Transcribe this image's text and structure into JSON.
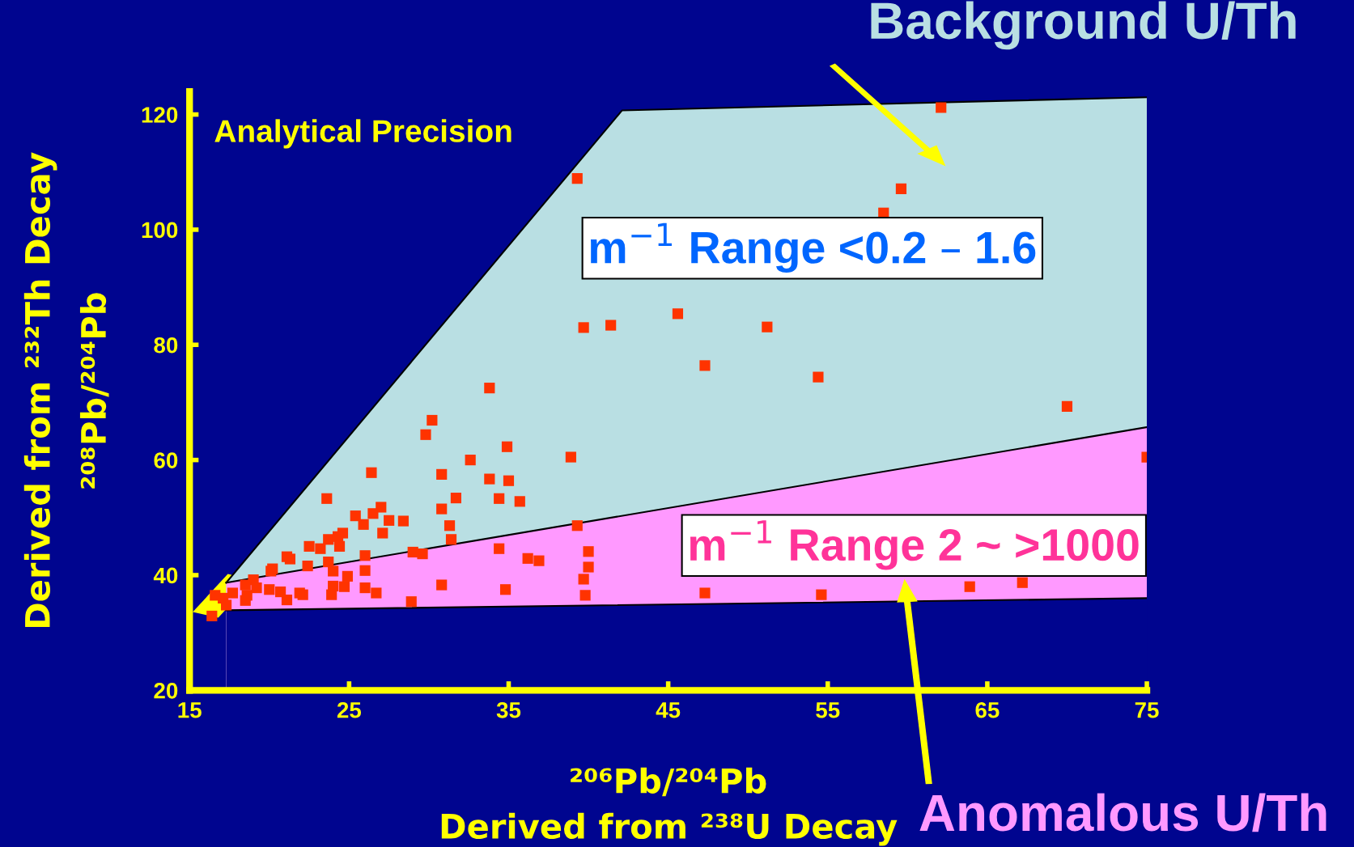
{
  "chart_data": {
    "type": "scatter",
    "xlabel": "²⁰⁶Pb/²⁰⁴Pb\nDerived from ²³⁸U Decay",
    "ylabel": "Derived from ²³²Th Decay\n²⁰⁸Pb/²⁰⁴Pb",
    "xlim": [
      15,
      75
    ],
    "ylim": [
      20,
      124
    ],
    "xticks": [
      15,
      25,
      35,
      45,
      55,
      65,
      75
    ],
    "yticks": [
      20,
      40,
      60,
      80,
      100,
      120
    ],
    "grid": false,
    "legend": false,
    "annotations": [
      "Background U/Th",
      "Anomalous U/Th",
      "Analytical Precision",
      "m$^{−1}$ Range <0.2 – 1.6",
      "m$^{−1}$ Range 2 ~ >1000"
    ],
    "series": [
      {
        "type": "area",
        "color": "#b9dfe3",
        "x": [
          17.3,
          42.1,
          75
        ],
        "values": [
          38.7,
          120.7,
          123.0
        ]
      },
      {
        "type": "area",
        "color": "#ff99ff",
        "x": [
          17.3,
          75
        ],
        "values": [
          38.7,
          65.7
        ]
      },
      {
        "type": "area",
        "color": "#00058f",
        "x": [
          17.3,
          75
        ],
        "values": [
          33.9,
          36.0
        ]
      },
      {
        "color": "#ff3300",
        "marker": "square",
        "x": [
          62.1,
          39.3,
          59.6,
          58.5,
          39.7,
          41.4,
          45.6,
          51.2,
          47.3,
          54.4,
          70.0,
          75.0,
          33.8,
          30.2,
          29.8,
          34.9,
          32.6,
          38.9,
          26.4,
          30.8,
          33.8,
          35.0,
          31.7,
          23.6,
          34.4,
          35.7,
          30.8,
          27.0,
          25.4,
          28.4,
          31.3,
          39.3,
          31.4,
          34.4,
          40.0,
          36.2,
          36.9,
          40.0,
          39.7,
          39.8,
          30.8,
          34.8,
          28.9,
          47.3,
          54.6,
          63.9,
          67.2,
          16.4,
          26.5,
          27.5,
          25.9,
          27.1,
          24.6,
          23.7,
          24.3,
          22.5,
          23.2,
          26.0,
          29.0,
          29.6,
          23.7,
          21.3,
          20.2,
          22.4,
          24.0,
          26.0,
          24.9,
          24.0,
          24.7,
          26.0,
          26.7,
          23.9,
          22.1,
          21.1,
          19.0,
          19.2,
          20.0,
          18.5,
          18.6,
          17.7,
          17.1,
          16.6,
          17.3,
          18.5,
          20.7,
          21.9,
          21.1,
          24.4,
          20.1
        ],
        "values": [
          121.2,
          108.9,
          107.1,
          102.9,
          83.0,
          83.4,
          85.4,
          83.1,
          76.4,
          74.4,
          69.3,
          60.5,
          72.5,
          66.9,
          64.4,
          62.3,
          60.0,
          60.5,
          57.8,
          57.5,
          56.7,
          56.4,
          53.4,
          53.3,
          53.3,
          52.8,
          51.5,
          51.8,
          50.3,
          49.4,
          48.6,
          48.6,
          46.2,
          44.6,
          44.1,
          42.9,
          42.5,
          41.4,
          39.3,
          36.5,
          38.3,
          37.5,
          35.4,
          36.9,
          36.6,
          38.0,
          38.7,
          32.9,
          50.7,
          49.5,
          48.8,
          47.3,
          47.3,
          46.2,
          46.7,
          45.0,
          44.6,
          43.4,
          44.0,
          43.7,
          42.3,
          42.8,
          41.1,
          41.6,
          40.7,
          40.8,
          39.8,
          38.1,
          38.0,
          37.8,
          36.9,
          36.6,
          36.6,
          35.7,
          39.2,
          37.8,
          37.5,
          38.3,
          36.5,
          36.9,
          36.0,
          36.5,
          34.8,
          35.6,
          37.1,
          36.9,
          43.2,
          45.0,
          40.7
        ]
      }
    ]
  }
}
